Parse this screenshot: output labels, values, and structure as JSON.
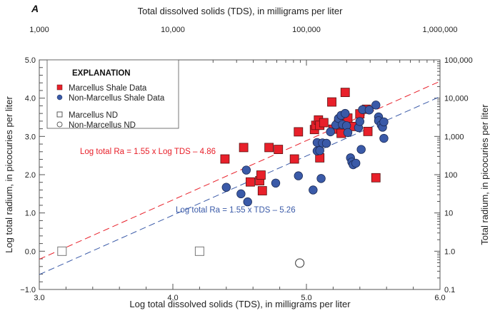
{
  "chart_data": {
    "type": "scatter",
    "panel_label": "A",
    "title": "",
    "xlabel": "Log total dissolved solids (TDS), in milligrams per liter",
    "ylabel": "Log total radium, in picocuries per liter",
    "x2label": "Total dissolved solids (TDS), in milligrams per liter",
    "y2label": "Total radium, in picocuries per liter",
    "xlim": [
      3.0,
      6.0
    ],
    "ylim": [
      -1.0,
      5.0
    ],
    "x_ticks": [
      "3.0",
      "4.0",
      "5.0",
      "6.0"
    ],
    "y_ticks": [
      "-1.0",
      "0.0",
      "1.0",
      "2.0",
      "3.0",
      "4.0",
      "5.0"
    ],
    "x2_ticks": [
      "1,000",
      "10,000",
      "100,000",
      "1,000,000"
    ],
    "y2_ticks": [
      "0.1",
      "1.0",
      "10",
      "100",
      "1,000",
      "10,000",
      "100,000"
    ],
    "grid": false,
    "legend": {
      "title": "EXPLANATION",
      "position": "top-left",
      "entries": [
        {
          "label": "Marcellus Shale Data",
          "marker": "filled-square",
          "color": "#e8202a"
        },
        {
          "label": "Non-Marcellus Shale Data",
          "marker": "filled-circle",
          "color": "#3a5aa8"
        },
        {
          "label": "Marcellus ND",
          "marker": "open-square",
          "color": "#777777"
        },
        {
          "label": "Non-Marcellus ND",
          "marker": "open-circle",
          "color": "#333333"
        }
      ]
    },
    "regression_lines": [
      {
        "name": "Marcellus",
        "label": "Log total Ra = 1.55 x Log TDS – 4.86",
        "slope": 1.55,
        "intercept": -4.86,
        "color": "#e8202a",
        "style": "dashed"
      },
      {
        "name": "Non-Marcellus",
        "label": "Log total Ra = 1.55 x TDS – 5.26",
        "slope": 1.55,
        "intercept": -5.26,
        "color": "#3a5aa8",
        "style": "dashed"
      }
    ],
    "series": [
      {
        "name": "Marcellus Shale Data",
        "marker": "filled-square",
        "color": "#e8202a",
        "points": [
          [
            4.39,
            2.41
          ],
          [
            4.53,
            2.71
          ],
          [
            4.58,
            1.81
          ],
          [
            4.65,
            1.84
          ],
          [
            4.66,
            1.99
          ],
          [
            4.67,
            1.58
          ],
          [
            4.72,
            2.71
          ],
          [
            4.79,
            2.66
          ],
          [
            4.91,
            2.41
          ],
          [
            4.94,
            3.12
          ],
          [
            5.06,
            3.18
          ],
          [
            5.07,
            3.29
          ],
          [
            5.09,
            3.43
          ],
          [
            5.1,
            3.29
          ],
          [
            5.1,
            2.44
          ],
          [
            5.13,
            3.36
          ],
          [
            5.19,
            3.9
          ],
          [
            5.2,
            3.19
          ],
          [
            5.24,
            3.32
          ],
          [
            5.26,
            3.08
          ],
          [
            5.29,
            4.15
          ],
          [
            5.3,
            3.34
          ],
          [
            5.31,
            3.48
          ],
          [
            5.34,
            3.26
          ],
          [
            5.4,
            3.59
          ],
          [
            5.45,
            3.71
          ],
          [
            5.46,
            3.13
          ],
          [
            5.52,
            1.92
          ]
        ]
      },
      {
        "name": "Non-Marcellus Shale Data",
        "marker": "filled-circle",
        "color": "#3a5aa8",
        "points": [
          [
            4.4,
            1.67
          ],
          [
            4.51,
            1.5
          ],
          [
            4.55,
            2.12
          ],
          [
            4.56,
            1.29
          ],
          [
            4.77,
            1.78
          ],
          [
            4.94,
            1.97
          ],
          [
            5.05,
            1.6
          ],
          [
            5.08,
            2.84
          ],
          [
            5.08,
            2.62
          ],
          [
            5.1,
            2.63
          ],
          [
            5.11,
            1.9
          ],
          [
            5.12,
            2.83
          ],
          [
            5.15,
            2.82
          ],
          [
            5.18,
            3.12
          ],
          [
            5.22,
            3.3
          ],
          [
            5.24,
            3.47
          ],
          [
            5.26,
            3.55
          ],
          [
            5.27,
            3.31
          ],
          [
            5.29,
            3.6
          ],
          [
            5.3,
            3.28
          ],
          [
            5.31,
            3.1
          ],
          [
            5.33,
            2.44
          ],
          [
            5.34,
            2.33
          ],
          [
            5.35,
            2.26
          ],
          [
            5.37,
            2.3
          ],
          [
            5.39,
            3.23
          ],
          [
            5.4,
            3.39
          ],
          [
            5.41,
            2.66
          ],
          [
            5.42,
            3.7
          ],
          [
            5.47,
            3.69
          ],
          [
            5.52,
            3.82
          ],
          [
            5.54,
            3.51
          ],
          [
            5.54,
            3.41
          ],
          [
            5.56,
            3.3
          ],
          [
            5.57,
            3.24
          ],
          [
            5.58,
            2.95
          ],
          [
            5.58,
            3.38
          ]
        ]
      },
      {
        "name": "Marcellus ND",
        "marker": "open-square",
        "color": "#777777",
        "points": [
          [
            3.17,
            0.0
          ],
          [
            4.2,
            0.0
          ]
        ]
      },
      {
        "name": "Non-Marcellus ND",
        "marker": "open-circle",
        "color": "#333333",
        "points": [
          [
            4.95,
            -0.31
          ]
        ]
      }
    ]
  }
}
